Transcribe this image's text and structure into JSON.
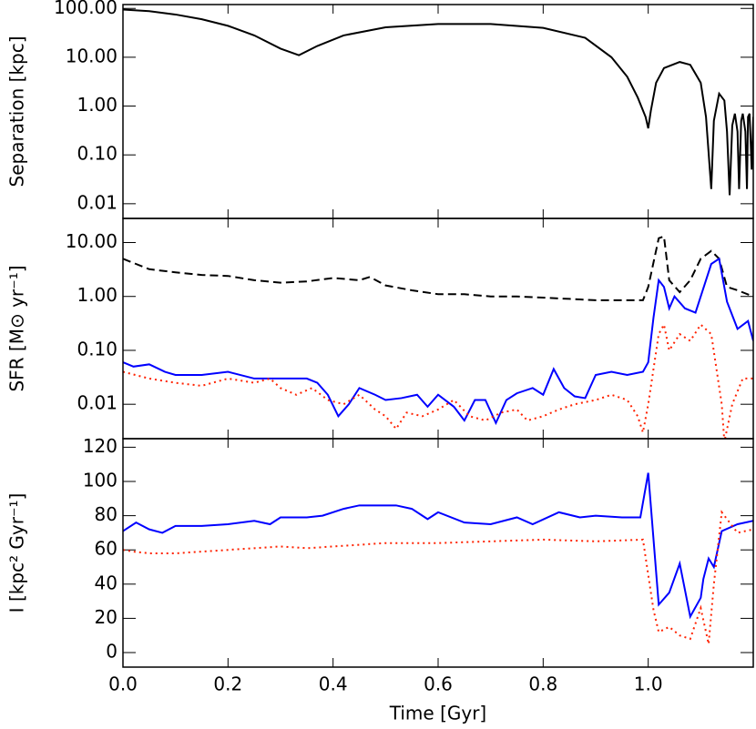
{
  "chart_data": [
    {
      "type": "line",
      "ylabel": "Separation [kpc]",
      "log_y": true,
      "xlim": [
        0,
        1.2
      ],
      "ylim": [
        0.005,
        120
      ],
      "yticks": [
        {
          "value": 100,
          "label": "100.00"
        },
        {
          "value": 10,
          "label": "10.00"
        },
        {
          "value": 1,
          "label": "1.00"
        },
        {
          "value": 0.1,
          "label": "0.10"
        },
        {
          "value": 0.01,
          "label": "0.01"
        }
      ],
      "series": [
        {
          "color": "#000000",
          "linestyle": "solid",
          "x": [
            0,
            0.05,
            0.1,
            0.15,
            0.2,
            0.25,
            0.3,
            0.335,
            0.37,
            0.42,
            0.5,
            0.6,
            0.7,
            0.8,
            0.88,
            0.93,
            0.96,
            0.98,
            0.995,
            1.0,
            1.005,
            1.015,
            1.03,
            1.06,
            1.08,
            1.1,
            1.11,
            1.12,
            1.125,
            1.135,
            1.145,
            1.15,
            1.155,
            1.16,
            1.165,
            1.17,
            1.173,
            1.177,
            1.18,
            1.185,
            1.188,
            1.19,
            1.193,
            1.197,
            1.2
          ],
          "values": [
            95,
            88,
            75,
            60,
            44,
            28,
            15,
            11,
            17,
            28,
            41,
            48,
            48,
            40,
            25,
            10,
            4,
            1.5,
            0.6,
            0.35,
            0.8,
            3,
            6,
            8,
            7,
            3,
            0.6,
            0.02,
            0.5,
            1.8,
            1.3,
            0.3,
            0.015,
            0.4,
            0.7,
            0.3,
            0.02,
            0.5,
            0.7,
            0.3,
            0.02,
            0.6,
            0.7,
            0.05,
            0.6
          ]
        }
      ]
    },
    {
      "type": "line",
      "ylabel": "SFR [M⊙ yr⁻¹]",
      "log_y": true,
      "xlim": [
        0,
        1.2
      ],
      "ylim": [
        0.0023,
        28
      ],
      "yticks": [
        {
          "value": 10,
          "label": "10.00"
        },
        {
          "value": 1,
          "label": "1.00"
        },
        {
          "value": 0.1,
          "label": "0.10"
        },
        {
          "value": 0.01,
          "label": "0.01"
        }
      ],
      "series": [
        {
          "color": "#000000",
          "linestyle": "dashed",
          "x": [
            0,
            0.05,
            0.1,
            0.15,
            0.2,
            0.25,
            0.3,
            0.35,
            0.4,
            0.45,
            0.47,
            0.5,
            0.55,
            0.6,
            0.65,
            0.7,
            0.75,
            0.8,
            0.85,
            0.9,
            0.95,
            0.99,
            1.0,
            1.02,
            1.03,
            1.04,
            1.06,
            1.08,
            1.1,
            1.12,
            1.135,
            1.15,
            1.17,
            1.2
          ],
          "values": [
            5,
            3.2,
            2.8,
            2.5,
            2.4,
            2.0,
            1.8,
            1.9,
            2.2,
            2.0,
            2.3,
            1.6,
            1.3,
            1.1,
            1.1,
            1.0,
            1.0,
            0.95,
            0.9,
            0.85,
            0.85,
            0.85,
            1.5,
            12,
            13,
            2,
            1.2,
            2,
            5,
            7,
            5,
            1.5,
            1.3,
            1.0
          ]
        },
        {
          "color": "#0000ff",
          "linestyle": "solid",
          "x": [
            0,
            0.02,
            0.05,
            0.08,
            0.1,
            0.15,
            0.2,
            0.25,
            0.3,
            0.35,
            0.37,
            0.39,
            0.41,
            0.43,
            0.45,
            0.48,
            0.5,
            0.53,
            0.56,
            0.58,
            0.6,
            0.63,
            0.65,
            0.67,
            0.69,
            0.71,
            0.73,
            0.75,
            0.78,
            0.8,
            0.82,
            0.84,
            0.86,
            0.88,
            0.9,
            0.93,
            0.96,
            0.99,
            1.0,
            1.01,
            1.02,
            1.03,
            1.04,
            1.05,
            1.07,
            1.09,
            1.1,
            1.12,
            1.135,
            1.15,
            1.17,
            1.19,
            1.2
          ],
          "values": [
            0.06,
            0.05,
            0.055,
            0.04,
            0.035,
            0.035,
            0.04,
            0.03,
            0.03,
            0.03,
            0.025,
            0.015,
            0.006,
            0.01,
            0.02,
            0.015,
            0.012,
            0.013,
            0.015,
            0.009,
            0.015,
            0.009,
            0.005,
            0.012,
            0.012,
            0.0045,
            0.012,
            0.016,
            0.02,
            0.015,
            0.045,
            0.02,
            0.014,
            0.013,
            0.035,
            0.04,
            0.035,
            0.04,
            0.06,
            0.4,
            2,
            1.5,
            0.6,
            1.0,
            0.6,
            0.5,
            1.0,
            4,
            5,
            0.8,
            0.25,
            0.35,
            0.15
          ]
        },
        {
          "color": "#ff2200",
          "linestyle": "dotted",
          "x": [
            0,
            0.05,
            0.1,
            0.15,
            0.2,
            0.25,
            0.28,
            0.3,
            0.33,
            0.36,
            0.39,
            0.42,
            0.45,
            0.48,
            0.5,
            0.52,
            0.54,
            0.57,
            0.6,
            0.63,
            0.66,
            0.69,
            0.72,
            0.75,
            0.77,
            0.8,
            0.83,
            0.86,
            0.9,
            0.93,
            0.96,
            0.98,
            0.99,
            1.0,
            1.02,
            1.03,
            1.04,
            1.06,
            1.08,
            1.1,
            1.12,
            1.14,
            1.145,
            1.16,
            1.18,
            1.2
          ],
          "values": [
            0.04,
            0.03,
            0.025,
            0.022,
            0.03,
            0.025,
            0.03,
            0.02,
            0.015,
            0.02,
            0.012,
            0.01,
            0.015,
            0.008,
            0.006,
            0.0035,
            0.007,
            0.006,
            0.008,
            0.012,
            0.006,
            0.005,
            0.007,
            0.008,
            0.005,
            0.006,
            0.008,
            0.01,
            0.012,
            0.015,
            0.012,
            0.006,
            0.003,
            0.01,
            0.2,
            0.3,
            0.1,
            0.2,
            0.15,
            0.3,
            0.2,
            0.01,
            0.002,
            0.01,
            0.03,
            0.03
          ]
        }
      ]
    },
    {
      "type": "line",
      "ylabel": "I [kpc² Gyr⁻¹]",
      "xlabel": "Time [Gyr]",
      "log_y": false,
      "xlim": [
        0,
        1.2
      ],
      "ylim": [
        -8.5,
        125
      ],
      "xticks": [
        {
          "value": 0,
          "label": "0.0"
        },
        0.2,
        0.4,
        0.6,
        0.8,
        {
          "value": 1,
          "label": "1.0"
        }
      ],
      "yticks": [
        0,
        20,
        40,
        60,
        80,
        100,
        120
      ],
      "series": [
        {
          "color": "#0000ff",
          "linestyle": "solid",
          "x": [
            0,
            0.025,
            0.05,
            0.075,
            0.1,
            0.15,
            0.2,
            0.25,
            0.28,
            0.3,
            0.35,
            0.38,
            0.42,
            0.45,
            0.52,
            0.55,
            0.58,
            0.6,
            0.65,
            0.7,
            0.75,
            0.78,
            0.83,
            0.87,
            0.9,
            0.95,
            0.985,
            1.0,
            1.02,
            1.04,
            1.06,
            1.08,
            1.1,
            1.105,
            1.115,
            1.125,
            1.14,
            1.17,
            1.2
          ],
          "values": [
            71,
            76,
            72,
            70,
            74,
            74,
            75,
            77,
            75,
            79,
            79,
            80,
            84,
            86,
            86,
            84,
            78,
            82,
            76,
            75,
            79,
            75,
            82,
            79,
            80,
            79,
            79,
            105,
            28,
            35,
            52,
            21,
            32,
            43,
            55,
            50,
            71,
            75,
            77
          ]
        },
        {
          "color": "#ff2200",
          "linestyle": "dotted",
          "x": [
            0,
            0.02,
            0.05,
            0.1,
            0.15,
            0.2,
            0.25,
            0.3,
            0.35,
            0.4,
            0.45,
            0.5,
            0.6,
            0.7,
            0.8,
            0.9,
            0.99,
            1.01,
            1.02,
            1.04,
            1.06,
            1.08,
            1.1,
            1.115,
            1.125,
            1.14,
            1.17,
            1.2
          ],
          "values": [
            60,
            59,
            58,
            58,
            59,
            60,
            61,
            62,
            61,
            62,
            63,
            64,
            64,
            65,
            66,
            65,
            66,
            25,
            12,
            15,
            10,
            8,
            26,
            5,
            40,
            82,
            70,
            72
          ]
        }
      ]
    }
  ]
}
